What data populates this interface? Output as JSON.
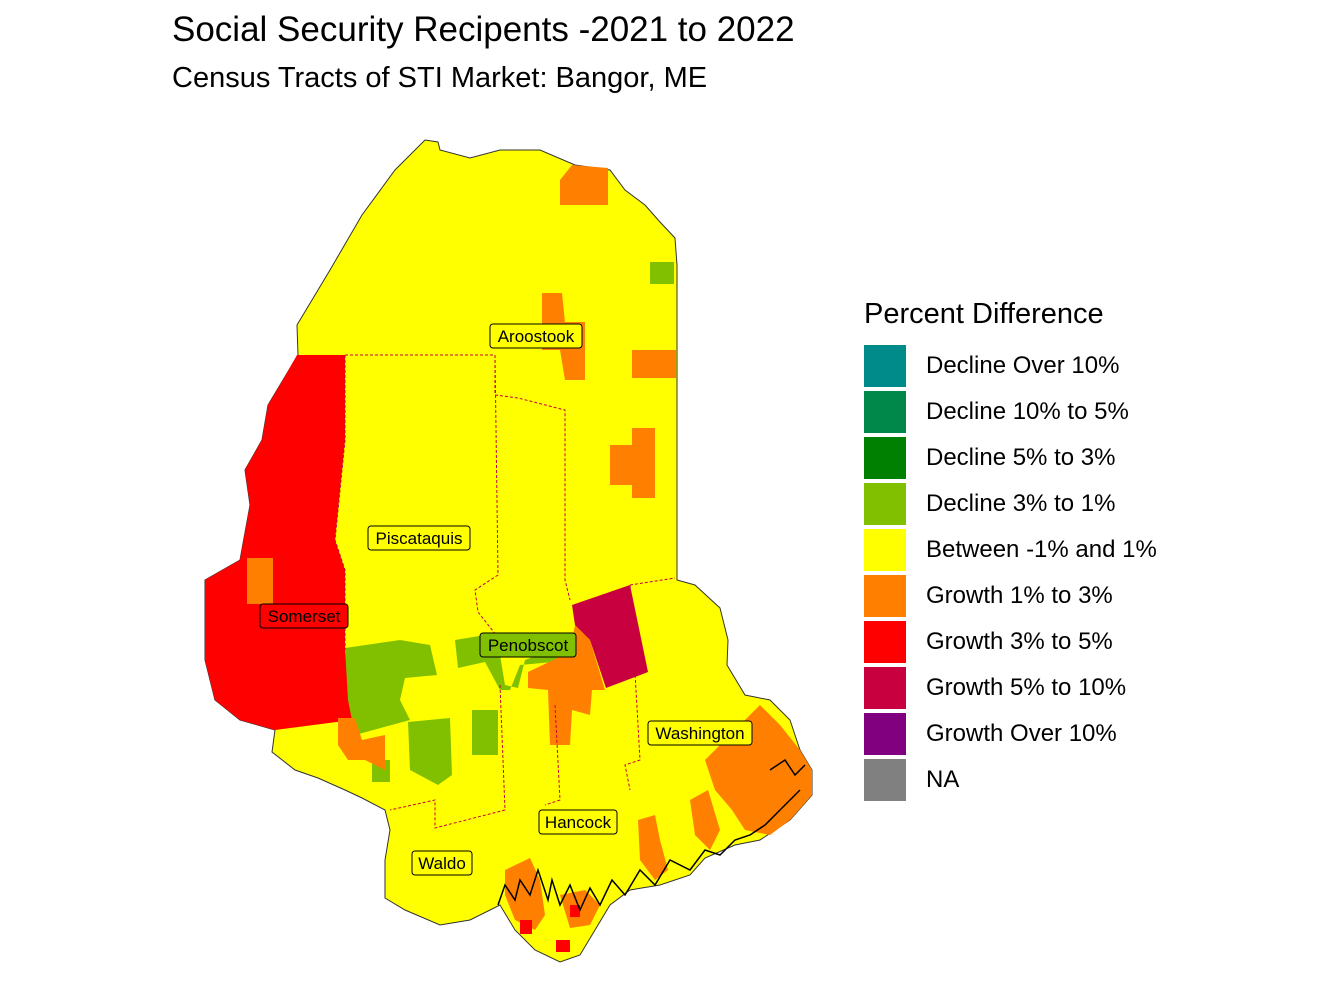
{
  "title": "Social Security Recipents -2021 to 2022",
  "subtitle": "Census Tracts of STI Market: Bangor, ME",
  "legend": {
    "title": "Percent Difference",
    "items": [
      {
        "label": "Decline Over 10%",
        "color": "#008B8B"
      },
      {
        "label": "Decline 10% to 5%",
        "color": "#00874A"
      },
      {
        "label": "Decline 5% to 3%",
        "color": "#008000"
      },
      {
        "label": "Decline 3% to 1%",
        "color": "#80C000"
      },
      {
        "label": "Between -1% and 1%",
        "color": "#FFFF00"
      },
      {
        "label": "Growth 1% to 3%",
        "color": "#FF8000"
      },
      {
        "label": "Growth 3% to 5%",
        "color": "#FF0000"
      },
      {
        "label": "Growth 5% to 10%",
        "color": "#C80040"
      },
      {
        "label": "Growth Over 10%",
        "color": "#800080"
      },
      {
        "label": "NA",
        "color": "#808080"
      }
    ]
  },
  "counties": [
    {
      "name": "Aroostook"
    },
    {
      "name": "Piscataquis"
    },
    {
      "name": "Somerset"
    },
    {
      "name": "Penobscot"
    },
    {
      "name": "Washington"
    },
    {
      "name": "Hancock"
    },
    {
      "name": "Waldo"
    }
  ]
}
